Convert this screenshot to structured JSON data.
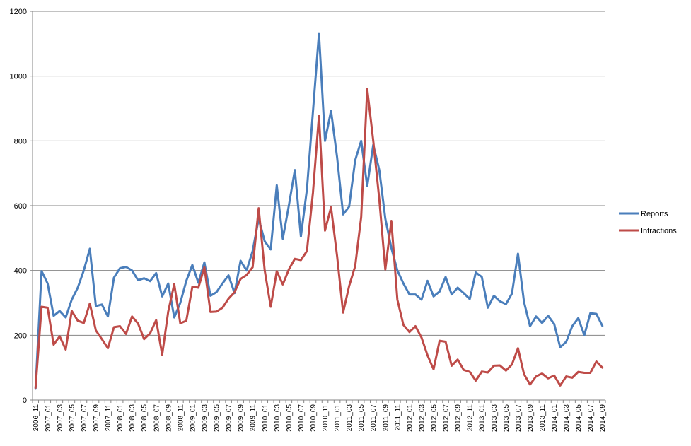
{
  "chart_data": {
    "type": "line",
    "title": "",
    "xlabel": "",
    "ylabel": "",
    "ylim": [
      0,
      1200
    ],
    "yticks": [
      0,
      200,
      400,
      600,
      800,
      1000,
      1200
    ],
    "grid": true,
    "legend_position": "right",
    "start_month": "2006-11",
    "x_tick_labels": [
      "2006_11",
      "2007_01",
      "2007_03",
      "2007_05",
      "2007_07",
      "2007_09",
      "2007_11",
      "2008_01",
      "2008_03",
      "2008_05",
      "2008_07",
      "2008_09",
      "2008_11",
      "2009_01",
      "2009_03",
      "2009_05",
      "2009_07",
      "2009_09",
      "2009_11",
      "2010_01",
      "2010_03",
      "2010_05",
      "2010_07",
      "2010_09",
      "2010_11",
      "2011_01",
      "2011_03",
      "2011_05",
      "2011_07",
      "2011_09",
      "2011_11",
      "2012_01",
      "2012_03",
      "2012_05",
      "2012_07",
      "2012_09",
      "2012_11",
      "2013_01",
      "2013_03",
      "2013_05",
      "2013_07",
      "2013_09",
      "2013_11",
      "2014_01",
      "2014_03",
      "2014_05",
      "2014_07",
      "2014_09"
    ],
    "series": [
      {
        "name": "Reports",
        "color": "#4a7ebb",
        "values": [
          35,
          398,
          360,
          260,
          275,
          255,
          310,
          347,
          400,
          467,
          290,
          295,
          258,
          378,
          407,
          411,
          400,
          370,
          376,
          367,
          392,
          320,
          360,
          255,
          300,
          368,
          417,
          362,
          425,
          322,
          333,
          360,
          385,
          330,
          430,
          400,
          460,
          560,
          490,
          465,
          663,
          498,
          600,
          710,
          505,
          650,
          890,
          1132,
          800,
          893,
          750,
          573,
          597,
          740,
          800,
          660,
          788,
          710,
          560,
          470,
          400,
          360,
          326,
          326,
          310,
          368,
          320,
          335,
          380,
          326,
          347,
          330,
          312,
          394,
          380,
          285,
          322,
          305,
          296,
          329,
          452,
          303,
          228,
          258,
          238,
          260,
          235,
          163,
          180,
          228,
          253,
          200,
          268,
          266,
          229
        ]
      },
      {
        "name": "Infractions",
        "color": "#be4b48",
        "values": [
          38,
          288,
          285,
          171,
          197,
          156,
          275,
          245,
          238,
          298,
          215,
          188,
          160,
          225,
          228,
          204,
          258,
          236,
          188,
          206,
          247,
          140,
          273,
          358,
          237,
          245,
          350,
          347,
          410,
          272,
          273,
          285,
          313,
          333,
          374,
          386,
          410,
          592,
          400,
          288,
          398,
          357,
          403,
          436,
          432,
          460,
          640,
          878,
          523,
          595,
          445,
          270,
          352,
          413,
          565,
          960,
          800,
          620,
          403,
          553,
          310,
          232,
          210,
          228,
          193,
          138,
          95,
          183,
          180,
          106,
          125,
          93,
          87,
          60,
          88,
          85,
          106,
          107,
          91,
          110,
          160,
          80,
          48,
          73,
          82,
          67,
          76,
          45,
          73,
          69,
          87,
          84,
          84,
          119,
          100
        ]
      }
    ]
  }
}
